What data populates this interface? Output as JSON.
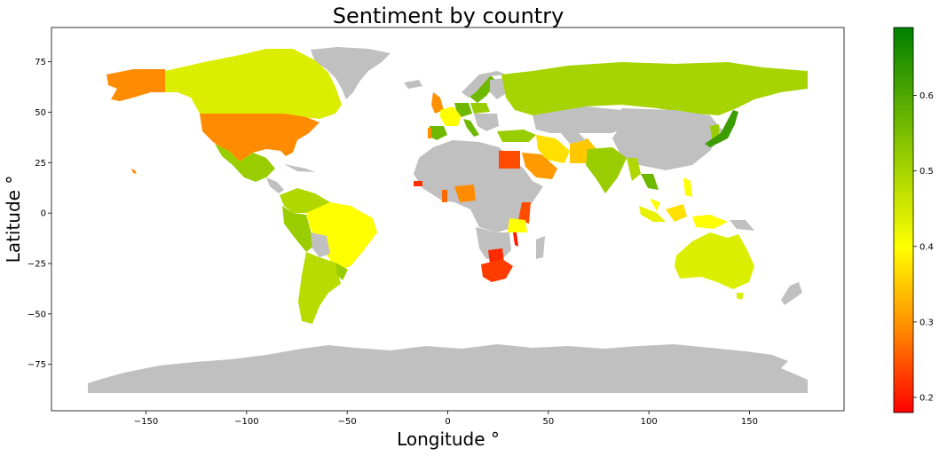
{
  "chart_data": {
    "type": "choropleth",
    "title": "Sentiment by country",
    "xlabel": "Longitude $^\\circ$",
    "xlabel_display": "Longitude  °",
    "ylabel_display": "Latitude  °",
    "xlim": [
      -197,
      197
    ],
    "ylim": [
      -98,
      92
    ],
    "xticks": [
      -150,
      -100,
      -50,
      0,
      50,
      100,
      150
    ],
    "xtick_labels": [
      "−150",
      "−100",
      "−50",
      "0",
      "50",
      "100",
      "150"
    ],
    "yticks": [
      75,
      50,
      25,
      0,
      -25,
      -50,
      -75
    ],
    "ytick_labels": [
      "75",
      "50",
      "25",
      "0",
      "−25",
      "−50",
      "−75"
    ],
    "colorbar": {
      "min": 0.18,
      "max": 0.69,
      "ticks": [
        0.2,
        0.3,
        0.4,
        0.5,
        0.6
      ],
      "tick_labels": [
        "0.2",
        "0.3",
        "0.4",
        "0.5",
        "0.6"
      ],
      "colors": [
        "#ff0000",
        "#ff8c00",
        "#ffff00",
        "#9acd00",
        "#008000"
      ]
    },
    "no_data_color": "#c0c0c0",
    "grid": false
  }
}
